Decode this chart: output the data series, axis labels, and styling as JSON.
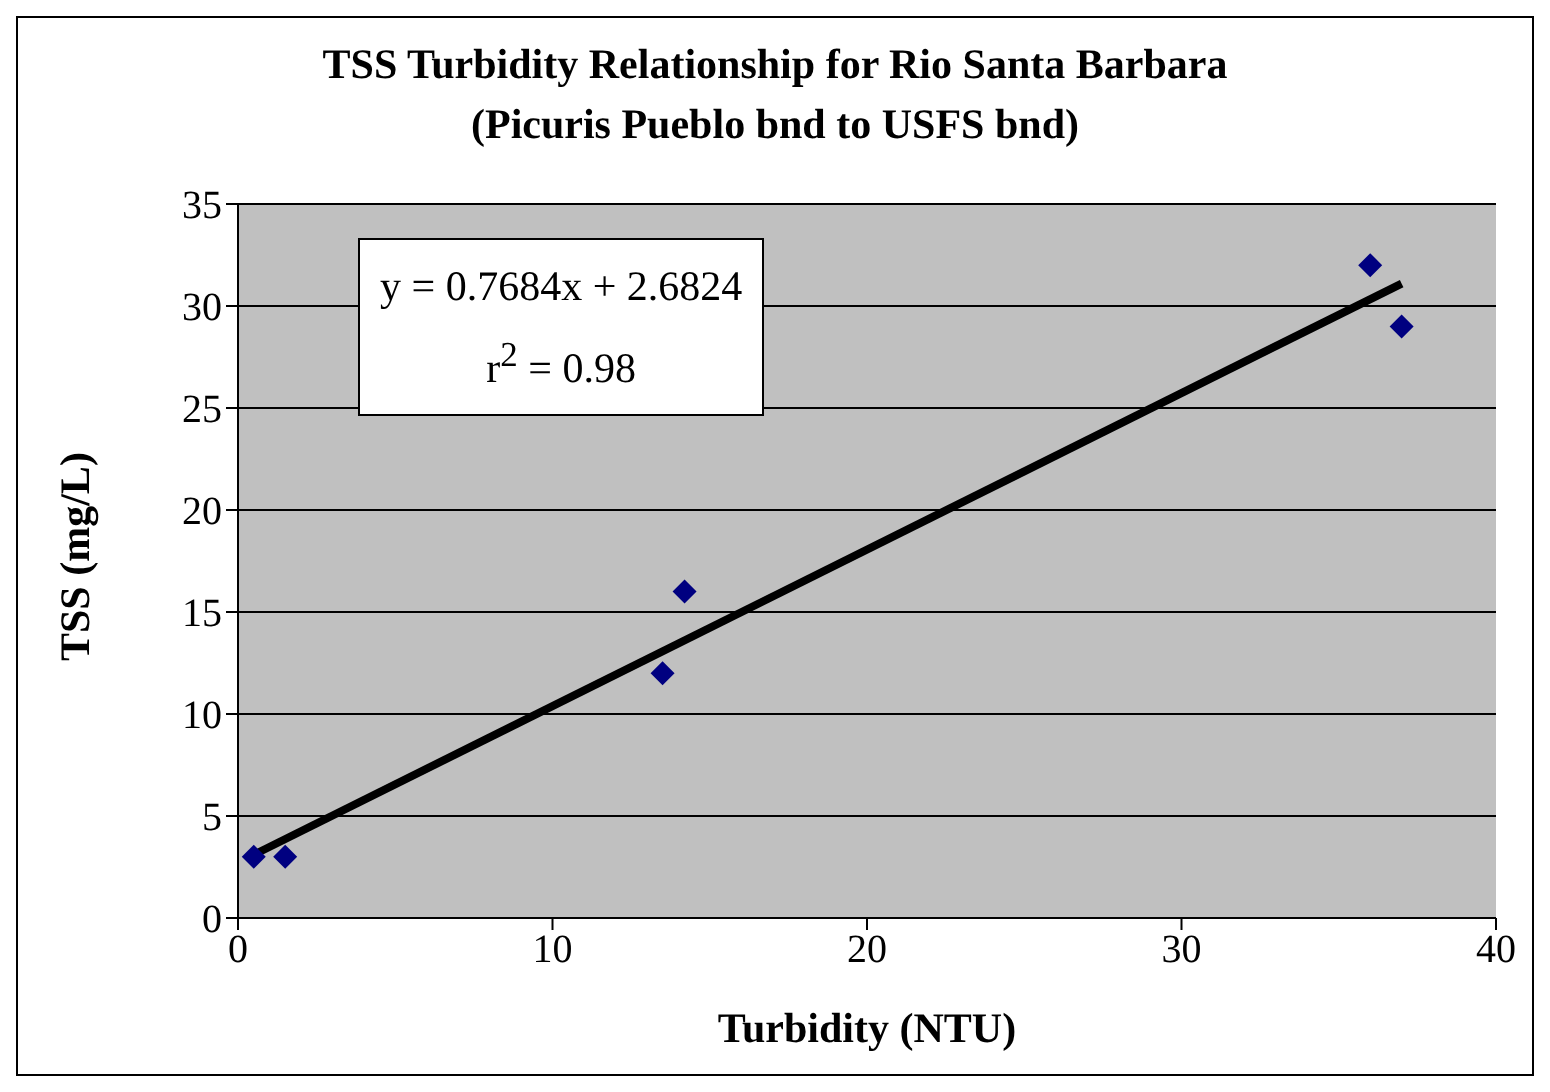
{
  "chart_data": {
    "type": "scatter",
    "title": "TSS Turbidity Relationship for Rio Santa Barbara",
    "subtitle": "(Picuris Pueblo bnd to USFS bnd)",
    "xlabel": "Turbidity (NTU)",
    "ylabel": "TSS (mg/L)",
    "series": [
      {
        "color": "#000080",
        "x": [
          0.5,
          1.5,
          13.5,
          14.2,
          36,
          37
        ],
        "values": [
          3,
          3,
          12,
          16,
          32,
          29
        ],
        "marker": "diamond"
      },
      {
        "type": "line",
        "color": "#000000",
        "x": [
          0.5,
          37
        ],
        "values": [
          3.1,
          31.1
        ],
        "marker": "none"
      }
    ],
    "annotations": [
      "y = 0.7684x + 2.6824",
      "r$^{2}$ = 0.98"
    ],
    "xlim": [
      0,
      40
    ],
    "xticks": [
      0,
      10,
      20,
      30,
      40
    ],
    "ylim": [
      0,
      35
    ],
    "yticks": [
      0,
      5,
      10,
      15,
      20,
      25,
      30,
      35
    ],
    "grid": "y",
    "legend": false
  }
}
